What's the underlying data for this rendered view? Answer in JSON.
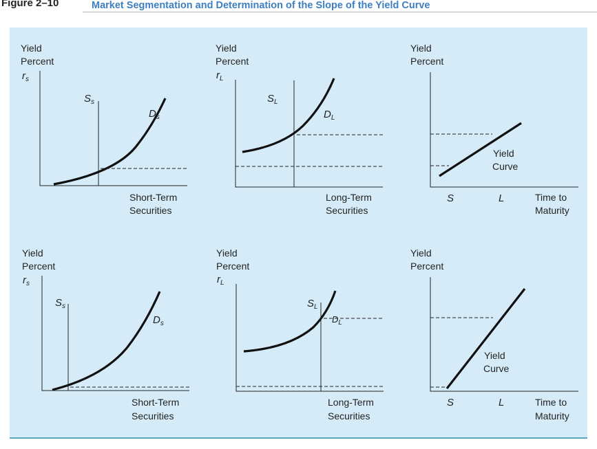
{
  "figure": {
    "label": "Figure 2–10",
    "title": "Market Segmentation and Determination of the Slope of the Yield Curve"
  },
  "labels": {
    "yield": "Yield",
    "percent": "Percent",
    "rate_symbol": "r",
    "short_sub": "s",
    "long_sub": "L",
    "supply": "S",
    "demand": "D",
    "short_term": "Short-Term",
    "long_term": "Long-Term",
    "securities": "Securities",
    "yield_curve_1": "Yield",
    "yield_curve_2": "Curve",
    "s_axis": "S",
    "l_axis": "L",
    "time_to": "Time to",
    "maturity": "Maturity"
  },
  "colors": {
    "panel_background": "#d5ecf8",
    "title_blue": "#3d7fc1",
    "rule_teal": "#5aa8b8"
  }
}
